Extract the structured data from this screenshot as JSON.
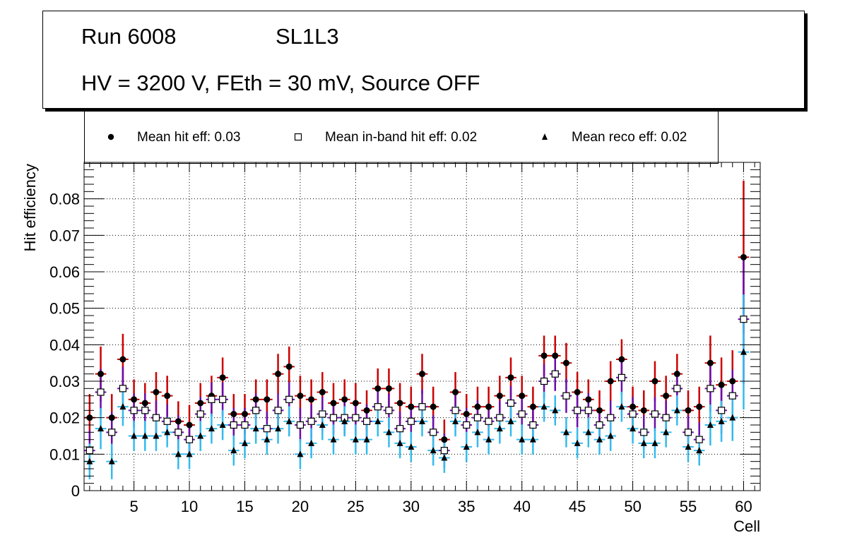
{
  "title": {
    "run_label": "Run 6008",
    "layer_label": "SL1L3",
    "conditions": "HV = 3200 V, FEth = 30 mV, Source OFF"
  },
  "legend": {
    "hit": "Mean hit  eff: 0.03",
    "inband": "Mean in-band hit eff: 0.02",
    "reco": "Mean reco eff: 0.02"
  },
  "colors": {
    "hit_error": "#cc0000",
    "inband_error": "#6a0dad",
    "reco_error": "#33bbee",
    "grid": "#000000"
  },
  "chart_data": {
    "type": "scatter",
    "xlabel": "Cell",
    "ylabel": "Hit efficiency",
    "xlim": [
      0.5,
      61.5
    ],
    "ylim": [
      0,
      0.09
    ],
    "xticks": [
      5,
      10,
      15,
      20,
      25,
      30,
      35,
      40,
      45,
      50,
      55,
      60
    ],
    "yticks": [
      0,
      0.01,
      0.02,
      0.03,
      0.04,
      0.05,
      0.06,
      0.07,
      0.08
    ],
    "grid": true,
    "cells": [
      1,
      2,
      3,
      4,
      5,
      6,
      7,
      8,
      9,
      10,
      11,
      12,
      13,
      14,
      15,
      16,
      17,
      18,
      19,
      20,
      21,
      22,
      23,
      24,
      25,
      26,
      27,
      28,
      29,
      30,
      31,
      32,
      33,
      34,
      35,
      36,
      37,
      38,
      39,
      40,
      41,
      42,
      43,
      44,
      45,
      46,
      47,
      48,
      49,
      50,
      51,
      52,
      53,
      54,
      55,
      56,
      57,
      58,
      59,
      60
    ],
    "series": [
      {
        "name": "Mean hit eff",
        "marker": "circle",
        "values": [
          0.02,
          0.032,
          0.02,
          0.036,
          0.025,
          0.024,
          0.027,
          0.026,
          0.019,
          0.018,
          0.024,
          0.026,
          0.031,
          0.021,
          0.021,
          0.025,
          0.025,
          0.032,
          0.034,
          0.026,
          0.025,
          0.027,
          0.024,
          0.025,
          0.024,
          0.022,
          0.028,
          0.028,
          0.024,
          0.023,
          0.032,
          0.023,
          0.014,
          0.027,
          0.021,
          0.023,
          0.023,
          0.026,
          0.031,
          0.026,
          0.023,
          0.037,
          0.037,
          0.035,
          0.027,
          0.025,
          0.022,
          0.03,
          0.036,
          0.023,
          0.022,
          0.03,
          0.026,
          0.032,
          0.022,
          0.023,
          0.035,
          0.029,
          0.03,
          0.064
        ],
        "errors": [
          0.0065,
          0.0075,
          0.0065,
          0.007,
          0.0055,
          0.0055,
          0.0055,
          0.0055,
          0.0055,
          0.0055,
          0.0055,
          0.0055,
          0.0055,
          0.0055,
          0.0055,
          0.0055,
          0.0055,
          0.0055,
          0.0055,
          0.0055,
          0.0055,
          0.0055,
          0.0055,
          0.0055,
          0.0055,
          0.0055,
          0.0055,
          0.0055,
          0.0055,
          0.0055,
          0.0055,
          0.0055,
          0.0055,
          0.0055,
          0.0055,
          0.0055,
          0.0055,
          0.0055,
          0.0055,
          0.0055,
          0.0055,
          0.0055,
          0.0055,
          0.0055,
          0.0055,
          0.0055,
          0.0055,
          0.0055,
          0.0055,
          0.0055,
          0.0055,
          0.0055,
          0.0055,
          0.0055,
          0.0055,
          0.0055,
          0.0075,
          0.0075,
          0.0085,
          0.021
        ]
      },
      {
        "name": "Mean in-band hit eff",
        "marker": "square",
        "values": [
          0.011,
          0.027,
          0.016,
          0.028,
          0.022,
          0.022,
          0.02,
          0.019,
          0.016,
          0.014,
          0.021,
          0.025,
          0.025,
          0.018,
          0.018,
          0.022,
          0.017,
          0.022,
          0.025,
          0.018,
          0.019,
          0.021,
          0.02,
          0.02,
          0.02,
          0.019,
          0.023,
          0.022,
          0.017,
          0.019,
          0.023,
          0.016,
          0.011,
          0.022,
          0.018,
          0.02,
          0.019,
          0.02,
          0.024,
          0.021,
          0.018,
          0.03,
          0.032,
          0.026,
          0.022,
          0.022,
          0.018,
          0.02,
          0.031,
          0.021,
          0.016,
          0.021,
          0.02,
          0.028,
          0.016,
          0.014,
          0.028,
          0.022,
          0.026,
          0.047
        ]
      },
      {
        "name": "Mean reco eff",
        "marker": "triangle",
        "values": [
          0.008,
          0.017,
          0.008,
          0.023,
          0.015,
          0.015,
          0.015,
          0.016,
          0.01,
          0.01,
          0.015,
          0.017,
          0.018,
          0.011,
          0.013,
          0.017,
          0.014,
          0.017,
          0.019,
          0.01,
          0.013,
          0.018,
          0.014,
          0.019,
          0.014,
          0.014,
          0.019,
          0.016,
          0.013,
          0.012,
          0.019,
          0.011,
          0.009,
          0.019,
          0.012,
          0.016,
          0.014,
          0.017,
          0.019,
          0.014,
          0.014,
          0.023,
          0.022,
          0.016,
          0.013,
          0.016,
          0.014,
          0.015,
          0.023,
          0.017,
          0.013,
          0.013,
          0.016,
          0.022,
          0.012,
          0.011,
          0.018,
          0.019,
          0.02,
          0.038
        ]
      }
    ]
  }
}
